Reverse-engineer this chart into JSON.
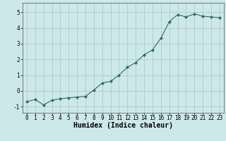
{
  "x": [
    0,
    1,
    2,
    3,
    4,
    5,
    6,
    7,
    8,
    9,
    10,
    11,
    12,
    13,
    14,
    15,
    16,
    17,
    18,
    19,
    20,
    21,
    22,
    23
  ],
  "y": [
    -0.7,
    -0.55,
    -0.9,
    -0.6,
    -0.5,
    -0.45,
    -0.4,
    -0.35,
    0.05,
    0.5,
    0.6,
    1.0,
    1.5,
    1.8,
    2.3,
    2.6,
    3.35,
    4.4,
    4.85,
    4.7,
    4.9,
    4.75,
    4.7,
    4.65
  ],
  "line_color": "#2e6e5e",
  "marker": "D",
  "marker_size": 2.0,
  "line_width": 0.8,
  "bg_color": "#cce8ea",
  "grid_color": "#b0c4c8",
  "xlabel": "Humidex (Indice chaleur)",
  "xlim": [
    -0.5,
    23.5
  ],
  "ylim": [
    -1.4,
    5.6
  ],
  "yticks": [
    -1,
    0,
    1,
    2,
    3,
    4,
    5
  ],
  "xtick_labels": [
    "0",
    "1",
    "2",
    "3",
    "4",
    "5",
    "6",
    "7",
    "8",
    "9",
    "10",
    "11",
    "12",
    "13",
    "14",
    "15",
    "16",
    "17",
    "18",
    "19",
    "20",
    "21",
    "22",
    "23"
  ],
  "tick_fontsize": 5.5,
  "xlabel_fontsize": 7.0,
  "grid_color_minor": "#c8dcde"
}
